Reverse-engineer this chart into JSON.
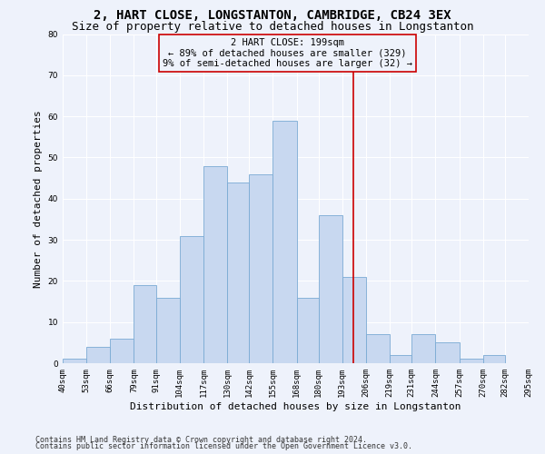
{
  "title1": "2, HART CLOSE, LONGSTANTON, CAMBRIDGE, CB24 3EX",
  "title2": "Size of property relative to detached houses in Longstanton",
  "xlabel": "Distribution of detached houses by size in Longstanton",
  "ylabel": "Number of detached properties",
  "footer1": "Contains HM Land Registry data © Crown copyright and database right 2024.",
  "footer2": "Contains public sector information licensed under the Open Government Licence v3.0.",
  "annotation_line1": "2 HART CLOSE: 199sqm",
  "annotation_line2": "← 89% of detached houses are smaller (329)",
  "annotation_line3": "9% of semi-detached houses are larger (32) →",
  "bar_values": [
    1,
    4,
    6,
    19,
    16,
    31,
    48,
    44,
    46,
    59,
    16,
    36,
    21,
    7,
    2,
    7,
    5,
    1,
    2,
    0
  ],
  "bin_edges": [
    40,
    53,
    66,
    79,
    91,
    104,
    117,
    130,
    142,
    155,
    168,
    180,
    193,
    206,
    219,
    231,
    244,
    257,
    270,
    282,
    295
  ],
  "tick_labels": [
    "40sqm",
    "53sqm",
    "66sqm",
    "79sqm",
    "91sqm",
    "104sqm",
    "117sqm",
    "130sqm",
    "142sqm",
    "155sqm",
    "168sqm",
    "180sqm",
    "193sqm",
    "206sqm",
    "219sqm",
    "231sqm",
    "244sqm",
    "257sqm",
    "270sqm",
    "282sqm",
    "295sqm"
  ],
  "bar_color": "#c8d8f0",
  "bar_edge_color": "#7aaad4",
  "vline_x": 199,
  "vline_color": "#cc0000",
  "annotation_box_edge_color": "#cc0000",
  "ylim": [
    0,
    80
  ],
  "yticks": [
    0,
    10,
    20,
    30,
    40,
    50,
    60,
    70,
    80
  ],
  "bg_color": "#eef2fb",
  "grid_color": "#ffffff",
  "title1_fontsize": 10,
  "title2_fontsize": 9,
  "axis_label_fontsize": 8,
  "tick_fontsize": 6.5,
  "annotation_fontsize": 7.5,
  "footer_fontsize": 6
}
